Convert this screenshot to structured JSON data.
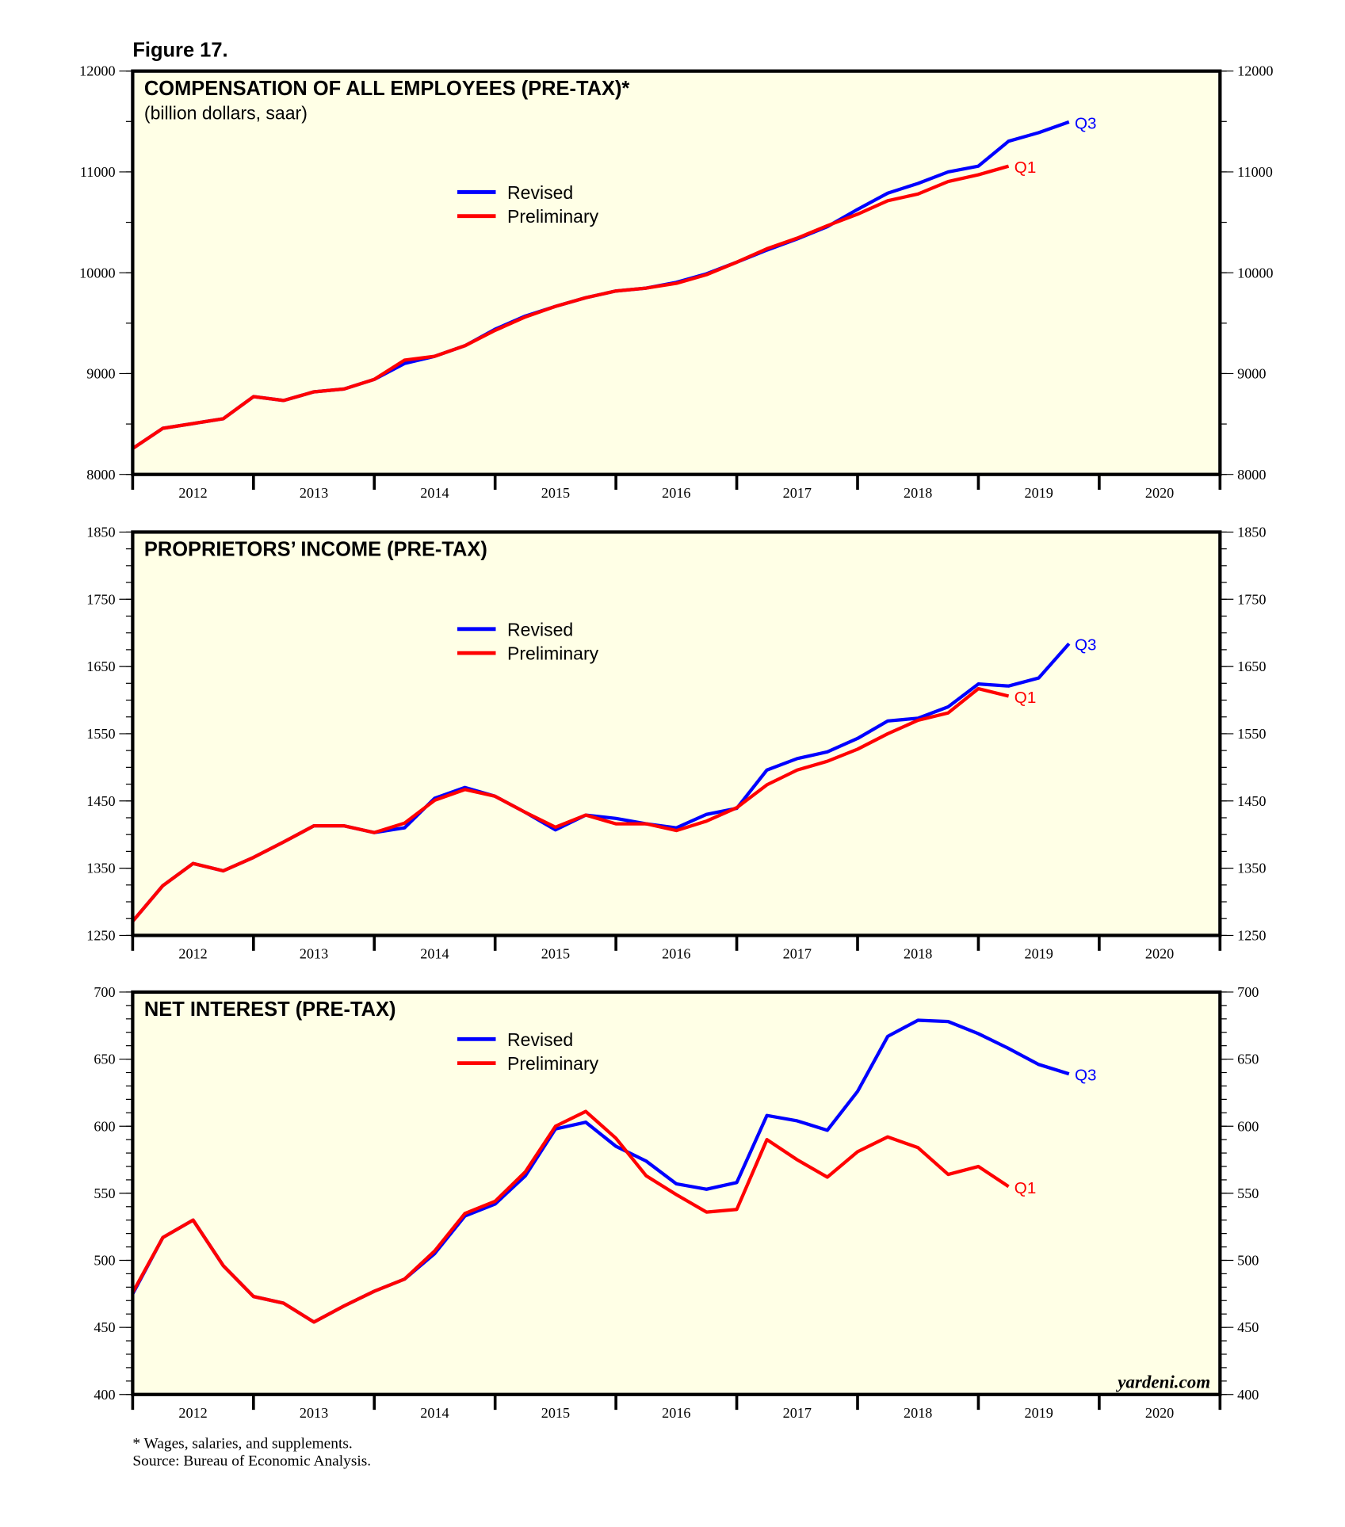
{
  "figure_label": "Figure 17.",
  "footnote": "* Wages, salaries, and supplements.",
  "source": "Source: Bureau of Economic Analysis.",
  "watermark": "yardeni.com",
  "colors": {
    "revised": "#0000ff",
    "preliminary": "#ff0000",
    "plot_bg": "#ffffe6"
  },
  "chart_data": [
    {
      "type": "line",
      "title": "COMPENSATION OF ALL EMPLOYEES (PRE-TAX)*",
      "subtitle": "(billion dollars, saar)",
      "ylim": [
        8000,
        12000
      ],
      "yticks": [
        8000,
        9000,
        10000,
        11000,
        12000
      ],
      "yminor": 500,
      "x_start": "2011Q4",
      "xticks": [
        "2012",
        "2013",
        "2014",
        "2015",
        "2016",
        "2017",
        "2018",
        "2019",
        "2020"
      ],
      "legend": [
        "Revised",
        "Preliminary"
      ],
      "legend_position": "upper-left-center",
      "series": [
        {
          "name": "Revised",
          "end_label": "Q3",
          "values": [
            8257,
            8457,
            8505,
            8552,
            8771,
            8733,
            8819,
            8848,
            8943,
            9100,
            9171,
            9276,
            9440,
            9570,
            9667,
            9752,
            9819,
            9848,
            9905,
            9990,
            10105,
            10225,
            10335,
            10457,
            10629,
            10790,
            10886,
            11000,
            11057,
            11305,
            11390,
            11495
          ]
        },
        {
          "name": "Preliminary",
          "end_label": "Q1",
          "values": [
            8257,
            8457,
            8505,
            8552,
            8771,
            8733,
            8819,
            8848,
            8943,
            9133,
            9171,
            9276,
            9429,
            9562,
            9667,
            9752,
            9819,
            9848,
            9895,
            9981,
            10105,
            10238,
            10343,
            10467,
            10581,
            10714,
            10781,
            10905,
            10971,
            11057
          ]
        }
      ]
    },
    {
      "type": "line",
      "title": "PROPRIETORS’ INCOME (PRE-TAX)",
      "subtitle": "",
      "ylim": [
        1250,
        1850
      ],
      "yticks": [
        1250,
        1350,
        1450,
        1550,
        1650,
        1750,
        1850
      ],
      "yminor": 25,
      "x_start": "2011Q4",
      "xticks": [
        "2012",
        "2013",
        "2014",
        "2015",
        "2016",
        "2017",
        "2018",
        "2019",
        "2020"
      ],
      "legend": [
        "Revised",
        "Preliminary"
      ],
      "legend_position": "upper-left-center",
      "series": [
        {
          "name": "Revised",
          "end_label": "Q3",
          "values": [
            1271,
            1324,
            1357,
            1346,
            1366,
            1389,
            1413,
            1413,
            1403,
            1410,
            1454,
            1470,
            1457,
            1433,
            1407,
            1429,
            1424,
            1416,
            1410,
            1430,
            1439,
            1496,
            1513,
            1523,
            1543,
            1569,
            1573,
            1590,
            1624,
            1621,
            1633,
            1684
          ]
        },
        {
          "name": "Preliminary",
          "end_label": "Q1",
          "values": [
            1271,
            1324,
            1357,
            1346,
            1366,
            1389,
            1413,
            1413,
            1403,
            1417,
            1451,
            1467,
            1457,
            1433,
            1411,
            1429,
            1416,
            1416,
            1406,
            1420,
            1440,
            1474,
            1496,
            1509,
            1527,
            1550,
            1570,
            1581,
            1617,
            1606
          ]
        }
      ]
    },
    {
      "type": "line",
      "title": "NET INTEREST (PRE-TAX)",
      "subtitle": "",
      "ylim": [
        400,
        700
      ],
      "yticks": [
        400,
        450,
        500,
        550,
        600,
        650,
        700
      ],
      "yminor": 10,
      "x_start": "2011Q4",
      "xticks": [
        "2012",
        "2013",
        "2014",
        "2015",
        "2016",
        "2017",
        "2018",
        "2019",
        "2020"
      ],
      "legend": [
        "Revised",
        "Preliminary"
      ],
      "legend_position": "upper-left-center",
      "series": [
        {
          "name": "Revised",
          "end_label": "Q3",
          "values": [
            475,
            517,
            530,
            496,
            473,
            468,
            454,
            466,
            477,
            486,
            505,
            533,
            542,
            563,
            598,
            603,
            585,
            574,
            557,
            553,
            558,
            608,
            604,
            597,
            626,
            667,
            679,
            678,
            669,
            658,
            646,
            639
          ]
        },
        {
          "name": "Preliminary",
          "end_label": "Q1",
          "values": [
            476,
            517,
            530,
            496,
            473,
            468,
            454,
            466,
            477,
            486,
            507,
            535,
            544,
            566,
            600,
            611,
            591,
            563,
            549,
            536,
            538,
            590,
            575,
            562,
            581,
            592,
            584,
            564,
            570,
            555
          ]
        }
      ]
    }
  ]
}
